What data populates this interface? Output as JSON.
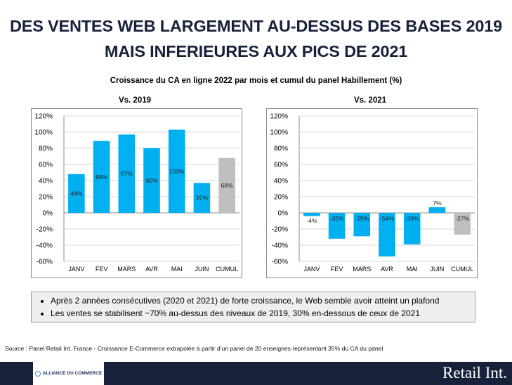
{
  "page": {
    "title_line1": "DES VENTES WEB LARGEMENT AU-DESSUS DES BASES 2019",
    "title_line2": "MAIS INFERIEURES AUX PICS DE 2021",
    "subtitle": "Croissance du CA en ligne 2022 par mois et cumul du panel Habillement (%)"
  },
  "chart_data": [
    {
      "type": "bar",
      "title": "Vs. 2019",
      "categories": [
        "JANV",
        "FEV",
        "MARS",
        "AVR",
        "MAI",
        "JUIN",
        "CUMUL"
      ],
      "values": [
        48,
        89,
        97,
        80,
        103,
        37,
        68
      ],
      "data_labels": [
        "48%",
        "89%",
        "97%",
        "80%",
        "103%",
        "37%",
        "68%"
      ],
      "highlight": "CUMUL",
      "ylim": [
        -60,
        120
      ],
      "yticks": [
        "120%",
        "100%",
        "80%",
        "60%",
        "40%",
        "20%",
        "0%",
        "-20%",
        "-40%",
        "-60%"
      ],
      "grid": true
    },
    {
      "type": "bar",
      "title": "Vs. 2021",
      "categories": [
        "JANV",
        "FEV",
        "MARS",
        "AVR",
        "MAI",
        "JUIN",
        "CUMUL"
      ],
      "values": [
        -4,
        -32,
        -29,
        -54,
        -39,
        7,
        -27
      ],
      "data_labels": [
        "-4%",
        "-32%",
        "-29%",
        "-54%",
        "-39%",
        "7%",
        "-27%"
      ],
      "highlight": "CUMUL",
      "ylim": [
        -60,
        120
      ],
      "yticks": [
        "120%",
        "100%",
        "80%",
        "60%",
        "40%",
        "20%",
        "0%",
        "-20%",
        "-40%",
        "-60%"
      ],
      "grid": true
    }
  ],
  "notes": [
    "Après 2 années consécutives (2020 et 2021) de forte croissance, le Web semble avoir atteint un plafond",
    "Les ventes se stabilisent ~70% au-dessus des niveaux de 2019, 30% en-dessous de ceux de 2021"
  ],
  "source": "Source : Panel Retail Int. France - Croissance E-Commerce extrapolée à partir d’un panel de 20 enseignes représentant 35% du CA du panel",
  "footer": {
    "partner_logo": "ALLIANCE DU COMMERCE",
    "brand": "Retail Int."
  },
  "colors": {
    "bar": "#00b0f0",
    "cumul": "#bfbfbf",
    "navy": "#17213a"
  }
}
